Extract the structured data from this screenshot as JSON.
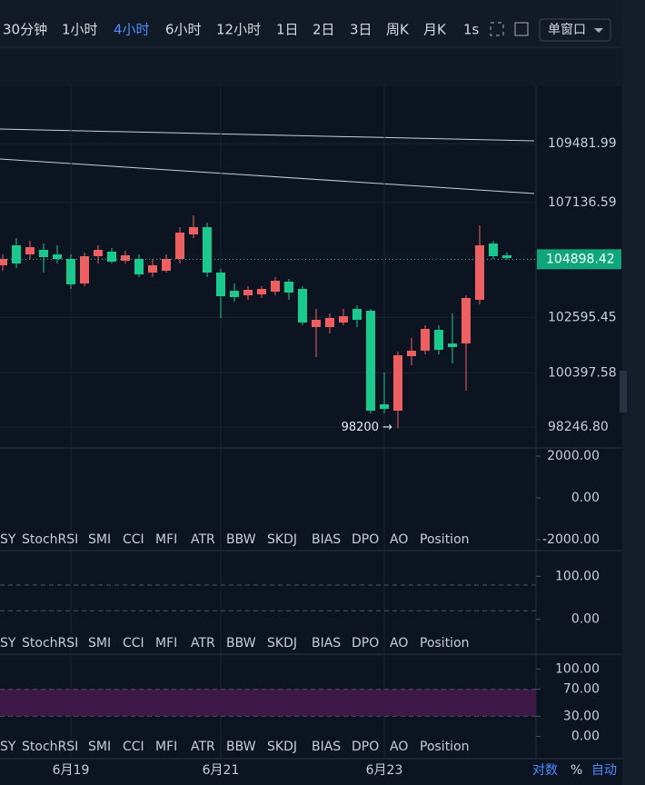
{
  "toolbar": {
    "intervals": [
      "30分钟",
      "1小时",
      "4小时",
      "6小时",
      "12小时",
      "1日",
      "2日",
      "3日",
      "周K",
      "月K",
      "1s"
    ],
    "active": 2,
    "window": "单窗口"
  },
  "chart_data": {
    "type": "candlestick",
    "ylim": [
      111750,
      97458
    ],
    "yticks": [
      109481.99,
      107136.59,
      102595.45,
      100397.58,
      {
        "value": 98246.8,
        "label": "98246.80"
      }
    ],
    "last_price": 104898.42,
    "annotation": "98200 →",
    "up_color": "#ee5f62",
    "down_color": "#1bc98e",
    "categories": [
      null,
      null,
      null,
      null,
      null,
      "6月19",
      null,
      null,
      null,
      null,
      null,
      null,
      null,
      null,
      null,
      null,
      "6月21",
      null,
      null,
      null,
      null,
      null,
      null,
      null,
      null,
      null,
      null,
      null,
      "6月23",
      null,
      null,
      null,
      null,
      null,
      null,
      null,
      null,
      null
    ],
    "open": [
      104658,
      105450,
      105090,
      105270,
      105090,
      104910,
      103938,
      105018,
      105198,
      104838,
      104910,
      104370,
      104442,
      104910,
      105882,
      106170,
      104370,
      103650,
      103470,
      103506,
      103614,
      104010,
      103722,
      102210,
      102210,
      102390,
      102930,
      102858,
      99150,
      98898,
      101058,
      101274,
      102102,
      101562,
      101562,
      103290,
      105522,
      105054
    ],
    "high": [
      105090,
      105738,
      105630,
      105522,
      105450,
      105090,
      105162,
      105450,
      105342,
      105234,
      105090,
      104910,
      105090,
      106170,
      106638,
      106350,
      104514,
      103938,
      103830,
      103830,
      104190,
      104118,
      103830,
      102930,
      102750,
      102930,
      103074,
      102930,
      100410,
      101238,
      101778,
      102282,
      102282,
      102750,
      103470,
      106242,
      105630,
      105162
    ],
    "low": [
      104442,
      104550,
      104910,
      104370,
      104730,
      103722,
      103830,
      104730,
      104730,
      104730,
      104190,
      104190,
      104370,
      104730,
      105738,
      104190,
      102570,
      103218,
      103290,
      103362,
      103470,
      103290,
      102282,
      101022,
      101958,
      102282,
      102210,
      98790,
      98790,
      98200,
      100698,
      101130,
      101130,
      100770,
      99690,
      103110,
      104910,
      104874
    ],
    "close": [
      104910,
      104730,
      105378,
      104982,
      104910,
      103902,
      105018,
      105270,
      104802,
      105054,
      104298,
      104658,
      104910,
      105954,
      106170,
      104370,
      103434,
      103398,
      103686,
      103722,
      104046,
      103578,
      102390,
      102498,
      102570,
      102642,
      102498,
      98898,
      98970,
      101094,
      101274,
      102138,
      101310,
      101418,
      103362,
      105450,
      105018,
      104946
    ]
  },
  "panels": [
    {
      "ylim": [
        -2527,
        2396
      ],
      "yticks": [
        {
          "value": 2000,
          "label": "2000.00"
        },
        {
          "value": 0,
          "label": "0.00"
        },
        {
          "value": -2000,
          "label": "-2000.00"
        }
      ]
    },
    {
      "ylim": [
        -81,
        160
      ],
      "yticks": [
        {
          "value": 100,
          "label": "100.00"
        },
        {
          "value": 0,
          "label": "0.00"
        }
      ],
      "dashed": [
        80,
        20
      ]
    },
    {
      "ylim": [
        -33,
        122
      ],
      "yticks": [
        {
          "value": 100,
          "label": "100.00"
        },
        {
          "value": 70,
          "label": "70.00"
        },
        {
          "value": 30,
          "label": "30.00"
        },
        {
          "value": 0,
          "label": "0.00"
        }
      ],
      "dashed": [
        70,
        30
      ],
      "band": [
        30,
        70
      ]
    }
  ],
  "indicator_tabs": [
    "SY",
    "StochRSI",
    "SMI",
    "CCI",
    "MFI",
    "ATR",
    "BBW",
    "SKDJ",
    "BIAS",
    "DPO",
    "AO",
    "Position"
  ],
  "footer": [
    "对数",
    "%",
    "自动"
  ]
}
